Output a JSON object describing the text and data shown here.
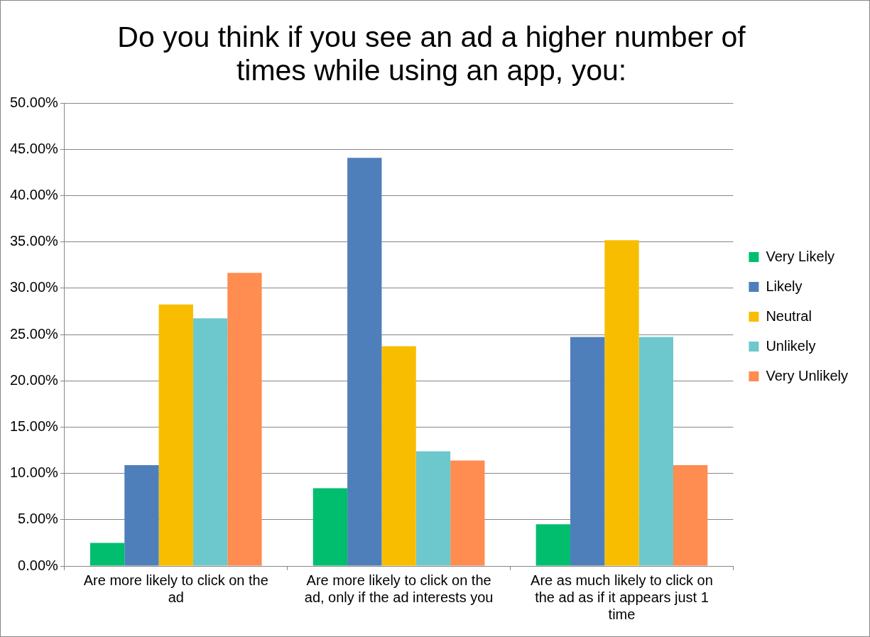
{
  "chart_data": {
    "type": "bar",
    "title": "Do you think if you see an ad a higher number of times while using an app, you:",
    "categories": [
      "Are more likely to click on the ad",
      "Are more likely to click on the ad, only if the ad interests you",
      "Are as much likely to click on the ad as if it appears just 1 time"
    ],
    "series": [
      {
        "name": "Very Likely",
        "color": "#00be6e",
        "values": [
          2.5,
          8.4,
          4.5
        ]
      },
      {
        "name": "Likely",
        "color": "#4f7fba",
        "values": [
          10.9,
          44.1,
          24.75
        ]
      },
      {
        "name": "Neutral",
        "color": "#f9bd00",
        "values": [
          28.25,
          23.75,
          35.2
        ]
      },
      {
        "name": "Unlikely",
        "color": "#6cc8cc",
        "values": [
          26.75,
          12.4,
          24.75
        ]
      },
      {
        "name": "Very Unlikely",
        "color": "#ff8c50",
        "values": [
          31.67,
          11.4,
          10.9
        ]
      }
    ],
    "ylim": [
      0,
      50
    ],
    "yticks": [
      {
        "value": 0,
        "label": "0.00%"
      },
      {
        "value": 5,
        "label": "5.00%"
      },
      {
        "value": 10,
        "label": "10.00%"
      },
      {
        "value": 15,
        "label": "15.00%"
      },
      {
        "value": 20,
        "label": "20.00%"
      },
      {
        "value": 25,
        "label": "25.00%"
      },
      {
        "value": 30,
        "label": "30.00%"
      },
      {
        "value": 35,
        "label": "35.00%"
      },
      {
        "value": 40,
        "label": "40.00%"
      },
      {
        "value": 45,
        "label": "45.00%"
      },
      {
        "value": 50,
        "label": "50.00%"
      }
    ],
    "grid": "y",
    "legend": "right"
  }
}
